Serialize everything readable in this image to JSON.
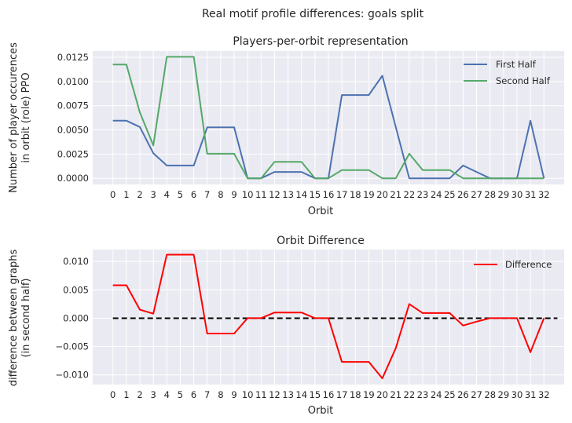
{
  "suptitle": "Real motif profile differences: goals split",
  "colors": {
    "background": "#eaeaf2",
    "grid": "#ffffff",
    "first_half": "#4c72b0",
    "second_half": "#55a868",
    "difference": "#ff0000",
    "zero_line": "#000000"
  },
  "chart_data": [
    {
      "type": "line",
      "title": "Players-per-orbit representation",
      "xlabel": "Orbit",
      "ylabel_line1": "Number of player occurences",
      "ylabel_line2": "in orbit (role) PPO",
      "x": [
        0,
        1,
        2,
        3,
        4,
        5,
        6,
        7,
        8,
        9,
        10,
        11,
        12,
        13,
        14,
        15,
        16,
        17,
        18,
        19,
        20,
        21,
        22,
        23,
        24,
        25,
        26,
        27,
        28,
        29,
        30,
        31,
        32
      ],
      "yticks": [
        0.0,
        0.0025,
        0.005,
        0.0075,
        0.01,
        0.0125
      ],
      "ytick_labels": [
        "0.0000",
        "0.0025",
        "0.0050",
        "0.0075",
        "0.0100",
        "0.0125"
      ],
      "ylim": [
        -0.00063,
        0.01315
      ],
      "legend_position": "top-right",
      "series": [
        {
          "name": "First Half",
          "values": [
            0.00595,
            0.00595,
            0.0053,
            0.0026,
            0.00132,
            0.00132,
            0.00132,
            0.00526,
            0.00526,
            0.00526,
            0.0,
            0.0,
            0.00066,
            0.00066,
            0.00066,
            0.0,
            0.0,
            0.0086,
            0.0086,
            0.0086,
            0.0106,
            0.0053,
            0.0,
            0.0,
            0.0,
            0.0,
            0.00132,
            0.00066,
            0.0,
            0.0,
            0.0,
            0.00595,
            0.0
          ]
        },
        {
          "name": "Second Half",
          "values": [
            0.01175,
            0.01175,
            0.0068,
            0.0034,
            0.01255,
            0.01255,
            0.01255,
            0.00254,
            0.00254,
            0.00254,
            0.0,
            0.0,
            0.0017,
            0.0017,
            0.0017,
            0.0,
            0.0,
            0.00085,
            0.00085,
            0.00085,
            0.0,
            0.0,
            0.00254,
            0.00085,
            0.00085,
            0.00085,
            0.0,
            0.0,
            0.0,
            0.0,
            0.0,
            0.0,
            0.0
          ]
        }
      ]
    },
    {
      "type": "line",
      "title": "Orbit Difference",
      "xlabel": "Orbit",
      "ylabel_line1": "difference between graphs",
      "ylabel_line2": "(in second half)",
      "x": [
        0,
        1,
        2,
        3,
        4,
        5,
        6,
        7,
        8,
        9,
        10,
        11,
        12,
        13,
        14,
        15,
        16,
        17,
        18,
        19,
        20,
        21,
        22,
        23,
        24,
        25,
        26,
        27,
        28,
        29,
        30,
        31,
        32
      ],
      "yticks": [
        -0.01,
        -0.005,
        0.0,
        0.005,
        0.01
      ],
      "ytick_labels": [
        "−0.010",
        "−0.005",
        "0.000",
        "0.005",
        "0.010"
      ],
      "ylim": [
        -0.0117,
        0.0121
      ],
      "zero_line": {
        "from": 0,
        "to": 33,
        "y": 0.0,
        "style": "dashed"
      },
      "legend_position": "top-right",
      "series": [
        {
          "name": "Difference",
          "values": [
            0.0058,
            0.0058,
            0.0015,
            0.0008,
            0.0112,
            0.0112,
            0.0112,
            -0.0027,
            -0.0027,
            -0.0027,
            0.0,
            0.0,
            0.001,
            0.001,
            0.001,
            0.0,
            0.0,
            -0.0077,
            -0.0077,
            -0.0077,
            -0.0106,
            -0.0053,
            0.0025,
            0.0009,
            0.0009,
            0.0009,
            -0.0013,
            -0.0006,
            0.0,
            0.0,
            0.0,
            -0.006,
            0.0
          ]
        }
      ]
    }
  ]
}
